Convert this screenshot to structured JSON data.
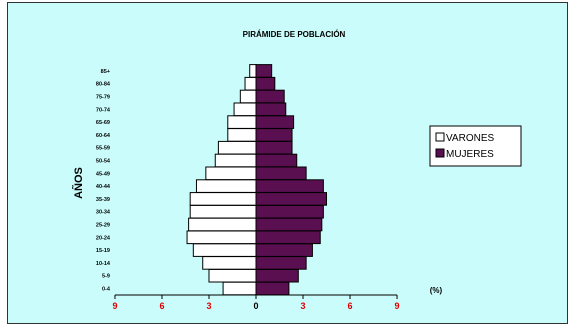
{
  "chart_data": {
    "type": "bar",
    "orientation": "horizontal",
    "layout": "population-pyramid",
    "title": "PIRÁMIDE DE POBLACIÓN",
    "ylabel": "AÑOS",
    "xlabel": "(%)",
    "categories": [
      "0-4",
      "5-9",
      "10-14",
      "15-19",
      "20-24",
      "25-29",
      "30-34",
      "35-39",
      "40-44",
      "45-49",
      "50-54",
      "55-59",
      "60-64",
      "65-69",
      "70-74",
      "75-79",
      "80-84",
      "85+"
    ],
    "x_ticks": [
      {
        "value": -9,
        "label": "9"
      },
      {
        "value": -6,
        "label": "6"
      },
      {
        "value": -3,
        "label": "3"
      },
      {
        "value": 0,
        "label": "0"
      },
      {
        "value": 3,
        "label": "3"
      },
      {
        "value": 6,
        "label": "6"
      },
      {
        "value": 9,
        "label": "9"
      }
    ],
    "xlim": [
      -9,
      9
    ],
    "series": [
      {
        "name": "VARONES",
        "color": "#ffffff",
        "side": "left",
        "values": [
          2.1,
          3.0,
          3.4,
          4.0,
          4.4,
          4.3,
          4.2,
          4.2,
          3.8,
          3.2,
          2.6,
          2.4,
          1.8,
          1.8,
          1.4,
          1.0,
          0.7,
          0.4
        ]
      },
      {
        "name": "MUJERES",
        "color": "#5a0f50",
        "side": "right",
        "values": [
          2.1,
          2.7,
          3.2,
          3.6,
          4.1,
          4.2,
          4.3,
          4.5,
          4.3,
          3.2,
          2.6,
          2.3,
          2.3,
          2.4,
          1.9,
          1.8,
          1.2,
          1.0
        ]
      }
    ],
    "legend_position": "right",
    "grid": false
  }
}
